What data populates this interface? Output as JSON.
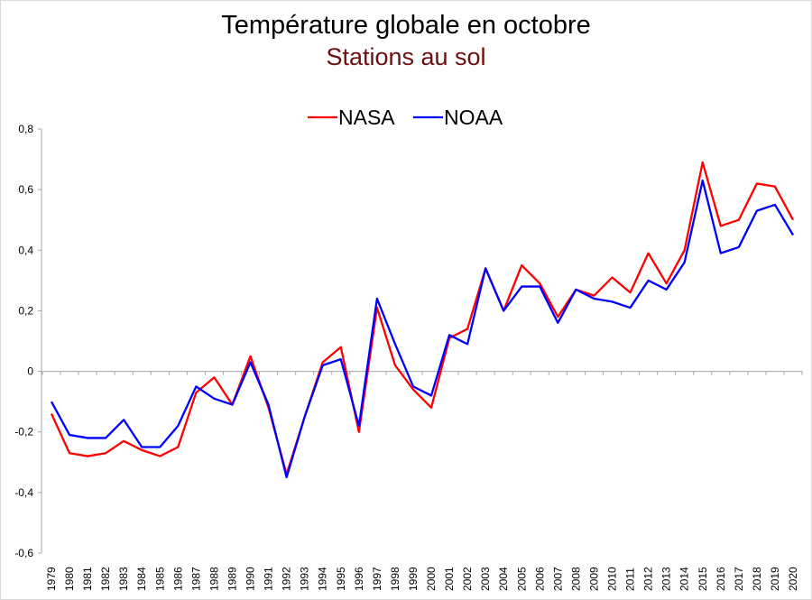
{
  "chart_data": {
    "type": "line",
    "title": "Température globale en octobre",
    "subtitle": "Stations au sol",
    "xlabel": "",
    "ylabel": "",
    "ylim": [
      -0.6,
      0.8
    ],
    "yticks": [
      "-0,6",
      "-0,4",
      "-0,2",
      "0",
      "0,2",
      "0,4",
      "0,6",
      "0,8"
    ],
    "ytick_values": [
      -0.6,
      -0.4,
      -0.2,
      0,
      0.2,
      0.4,
      0.6,
      0.8
    ],
    "legend_position": "top-center",
    "grid": false,
    "categories": [
      "1979",
      "1980",
      "1981",
      "1982",
      "1983",
      "1984",
      "1985",
      "1986",
      "1987",
      "1988",
      "1989",
      "1990",
      "1991",
      "1992",
      "1993",
      "1994",
      "1995",
      "1996",
      "1997",
      "1998",
      "1999",
      "2000",
      "2001",
      "2002",
      "2003",
      "2004",
      "2005",
      "2006",
      "2007",
      "2008",
      "2009",
      "2010",
      "2011",
      "2012",
      "2013",
      "2014",
      "2015",
      "2016",
      "2017",
      "2018",
      "2019",
      "2020"
    ],
    "series": [
      {
        "name": "NASA",
        "color": "#ff0000",
        "values": [
          -0.14,
          -0.27,
          -0.28,
          -0.27,
          -0.23,
          -0.26,
          -0.28,
          -0.25,
          -0.07,
          -0.02,
          -0.11,
          0.05,
          -0.12,
          -0.34,
          -0.15,
          0.03,
          0.08,
          -0.2,
          0.21,
          0.02,
          -0.06,
          -0.12,
          0.11,
          0.14,
          0.34,
          0.2,
          0.35,
          0.29,
          0.18,
          0.27,
          0.25,
          0.31,
          0.26,
          0.39,
          0.29,
          0.4,
          0.69,
          0.48,
          0.5,
          0.62,
          0.61,
          0.5
        ]
      },
      {
        "name": "NOAA",
        "color": "#0000ff",
        "values": [
          -0.1,
          -0.21,
          -0.22,
          -0.22,
          -0.16,
          -0.25,
          -0.25,
          -0.18,
          -0.05,
          -0.09,
          -0.11,
          0.03,
          -0.11,
          -0.35,
          -0.15,
          0.02,
          0.04,
          -0.18,
          0.24,
          0.09,
          -0.05,
          -0.08,
          0.12,
          0.09,
          0.34,
          0.2,
          0.28,
          0.28,
          0.16,
          0.27,
          0.24,
          0.23,
          0.21,
          0.3,
          0.27,
          0.36,
          0.63,
          0.39,
          0.41,
          0.53,
          0.55,
          0.45
        ]
      }
    ]
  }
}
